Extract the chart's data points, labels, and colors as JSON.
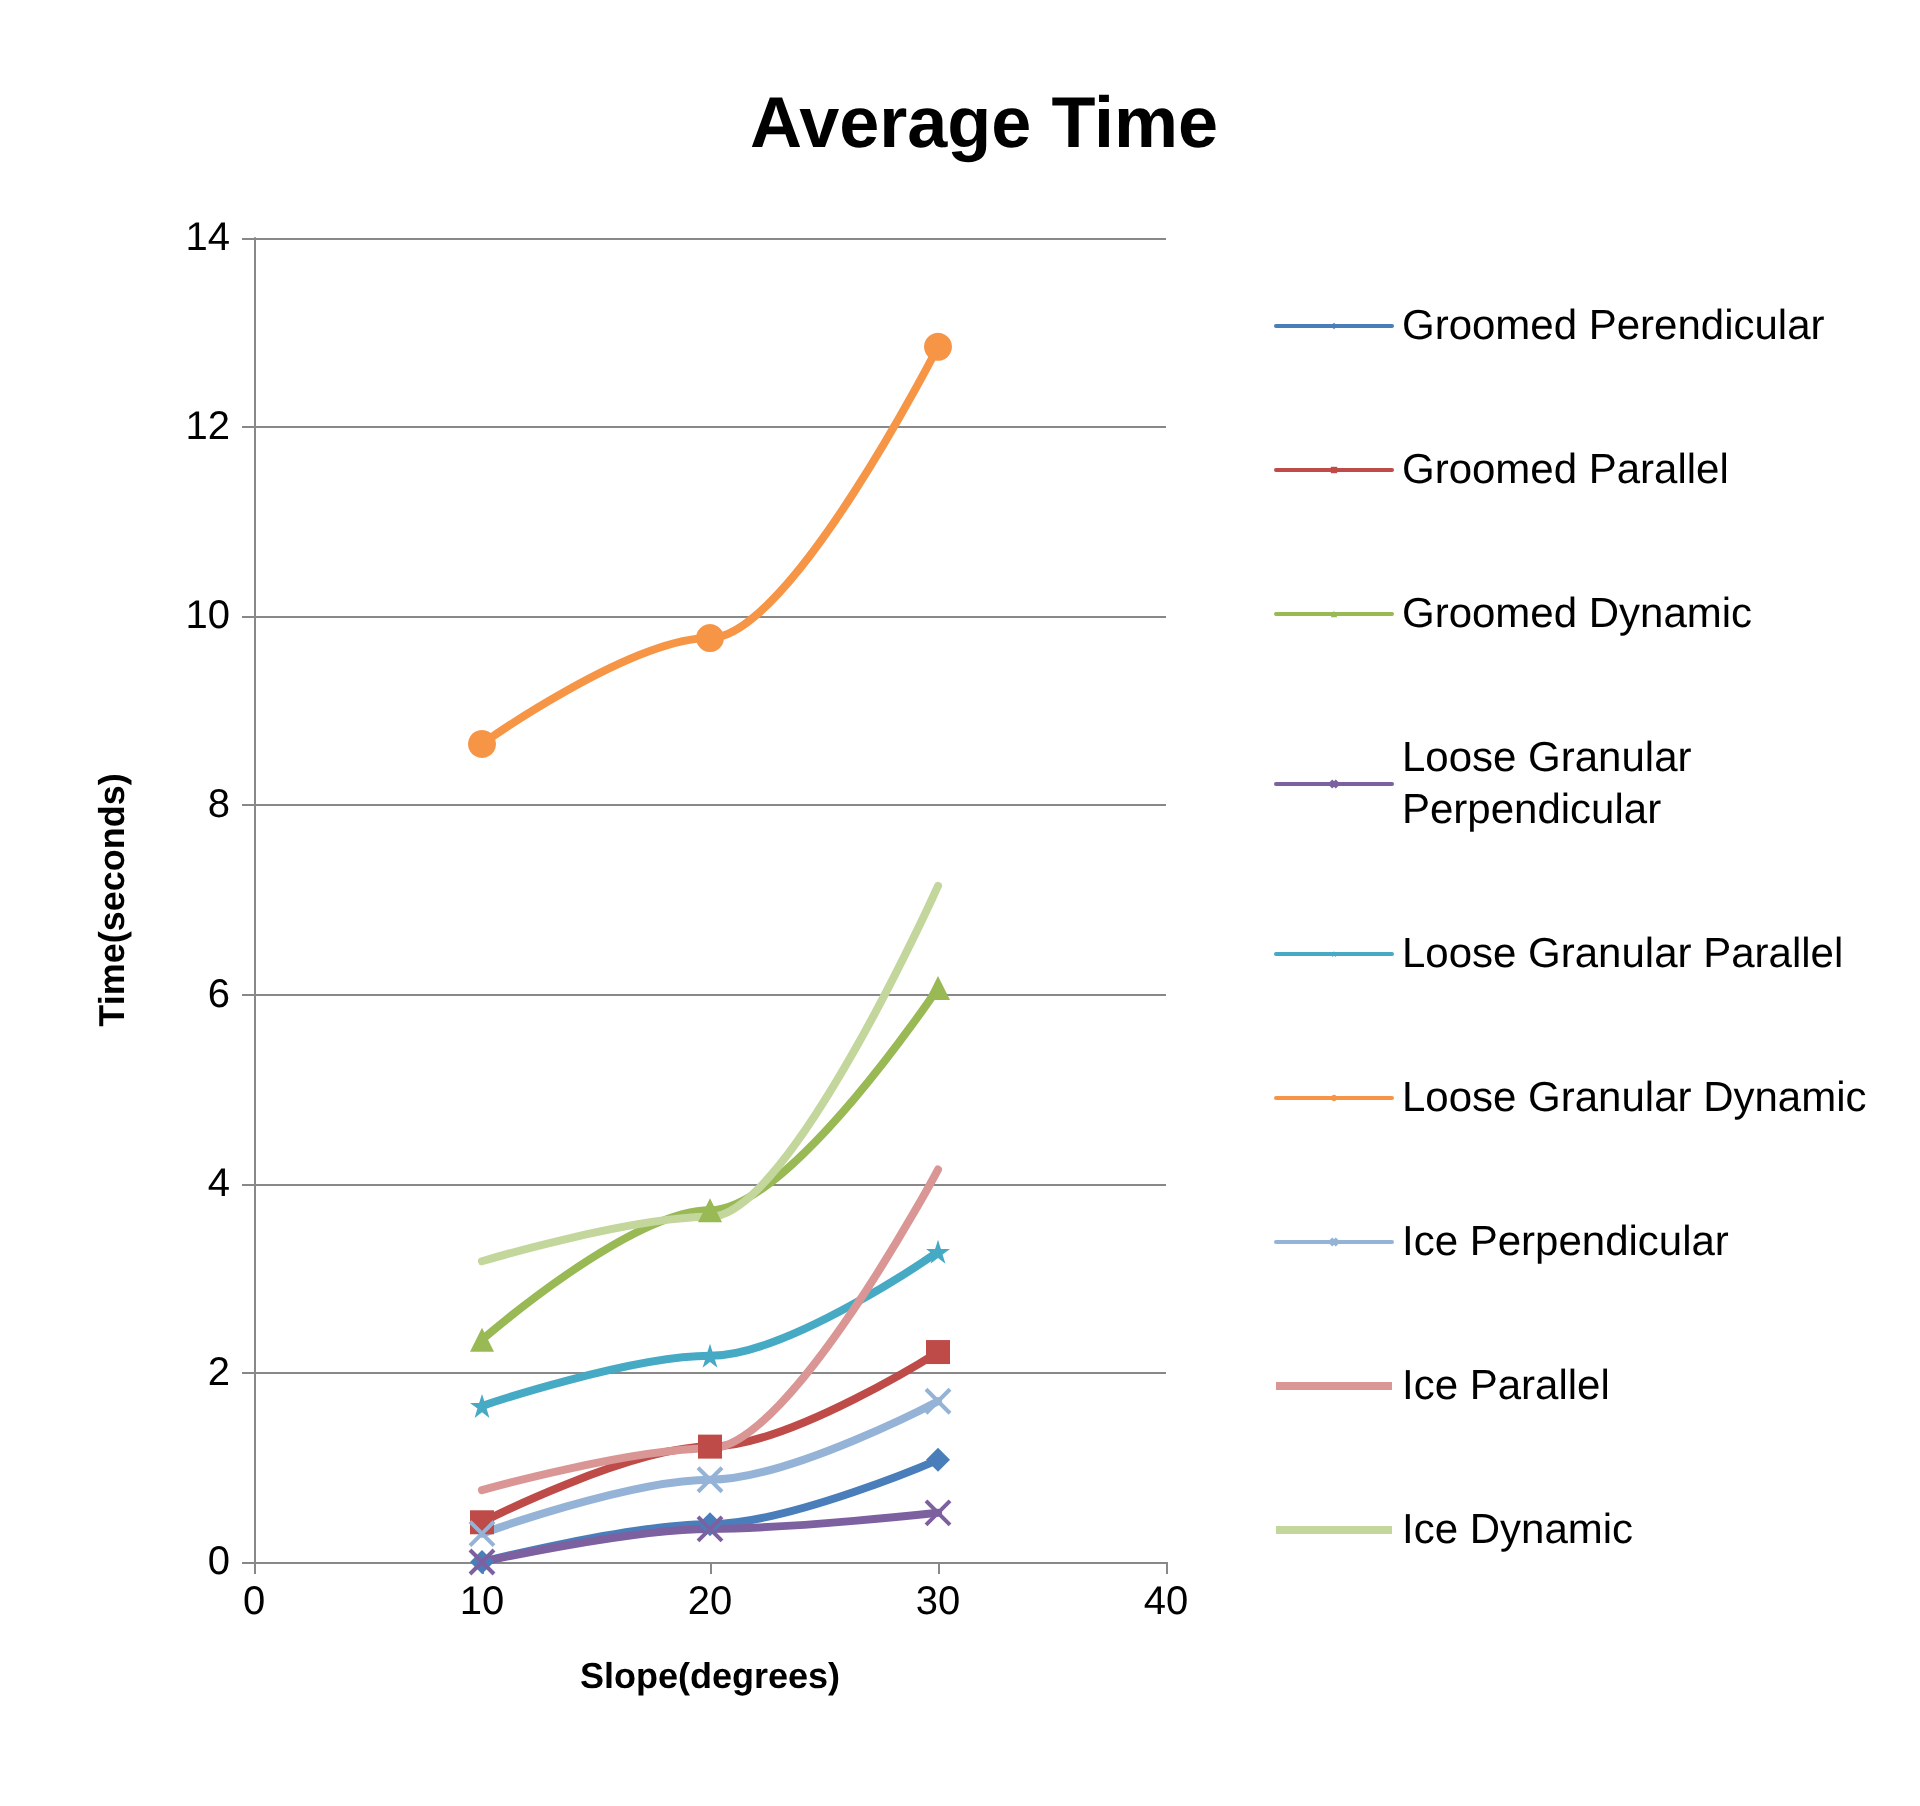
{
  "chart_data": {
    "type": "line",
    "title": "Average Time",
    "xlabel": "Slope(degrees)",
    "ylabel": "Time(seconds)",
    "x": [
      10,
      20,
      30
    ],
    "series": [
      {
        "name": "Groomed Perendicular",
        "color": "#4a7ebb",
        "marker": "diamond",
        "values": [
          0,
          0.4,
          1.08
        ]
      },
      {
        "name": "Groomed Parallel",
        "color": "#be4b48",
        "marker": "square",
        "values": [
          0.42,
          1.22,
          2.22
        ]
      },
      {
        "name": "Groomed Dynamic",
        "color": "#98b954",
        "marker": "triangle",
        "values": [
          2.35,
          3.72,
          6.07
        ]
      },
      {
        "name": "Loose Granular Perpendicular",
        "color": "#7d60a0",
        "marker": "cross",
        "values": [
          0,
          0.35,
          0.52
        ]
      },
      {
        "name": "Loose Granular Parallel",
        "color": "#46aac5",
        "marker": "star",
        "values": [
          1.65,
          2.18,
          3.28
        ]
      },
      {
        "name": "Loose Granular Dynamic",
        "color": "#f69545",
        "marker": "circle",
        "values": [
          8.65,
          9.77,
          12.85
        ]
      },
      {
        "name": "Ice Perpendicular",
        "color": "#95b3d7",
        "marker": "cross",
        "values": [
          0.3,
          0.87,
          1.7
        ]
      },
      {
        "name": "Ice Parallel",
        "color": "#d99694",
        "marker": "none",
        "values": [
          0.76,
          1.2,
          4.15
        ]
      },
      {
        "name": "Ice Dynamic",
        "color": "#c3d69b",
        "marker": "none",
        "values": [
          3.18,
          3.65,
          7.15
        ]
      }
    ],
    "xlim": [
      0,
      40
    ],
    "xticks": [
      0,
      10,
      20,
      30,
      40
    ],
    "ylim": [
      0,
      14
    ],
    "yticks": [
      0,
      2,
      4,
      6,
      8,
      10,
      12,
      14
    ],
    "grid": "y",
    "legend": "right",
    "line_style": "solid"
  }
}
